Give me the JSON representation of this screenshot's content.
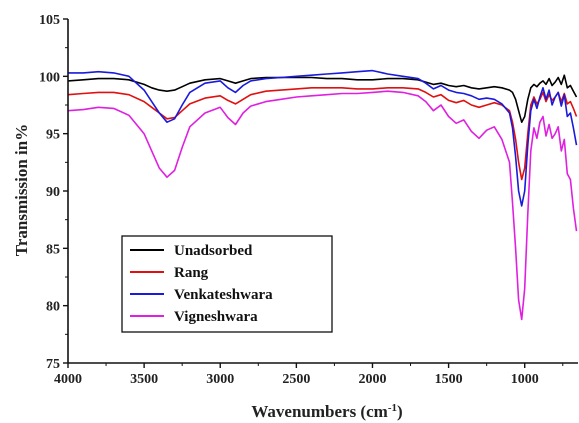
{
  "chart_data": {
    "type": "line",
    "title": "",
    "xlabel": "Wavenumbers (cm",
    "xlabel_sup": "-1",
    "xlabel_end": ")",
    "ylabel": "Transmission in%",
    "xlim": [
      4000,
      650
    ],
    "ylim": [
      75,
      105
    ],
    "x_reversed": true,
    "x_ticks": [
      4000,
      3500,
      3000,
      2500,
      2000,
      1500,
      1000
    ],
    "y_ticks": [
      75,
      80,
      85,
      90,
      95,
      100,
      105
    ],
    "grid": false,
    "legend_position": "lower-left",
    "series": [
      {
        "name": "Unadsorbed",
        "color": "#000000",
        "x": [
          4000,
          3900,
          3800,
          3700,
          3600,
          3500,
          3450,
          3400,
          3350,
          3300,
          3250,
          3200,
          3100,
          3000,
          2950,
          2900,
          2850,
          2800,
          2700,
          2600,
          2500,
          2400,
          2300,
          2200,
          2100,
          2000,
          1900,
          1800,
          1700,
          1650,
          1600,
          1550,
          1500,
          1450,
          1400,
          1350,
          1300,
          1250,
          1200,
          1150,
          1100,
          1080,
          1060,
          1040,
          1020,
          1000,
          980,
          960,
          940,
          920,
          900,
          880,
          860,
          840,
          820,
          800,
          780,
          760,
          740,
          720,
          700,
          680,
          660
        ],
        "values": [
          99.6,
          99.7,
          99.8,
          99.8,
          99.7,
          99.3,
          99.0,
          98.8,
          98.7,
          98.8,
          99.1,
          99.4,
          99.7,
          99.8,
          99.6,
          99.4,
          99.6,
          99.8,
          99.9,
          99.9,
          99.9,
          99.9,
          99.8,
          99.8,
          99.7,
          99.7,
          99.8,
          99.8,
          99.7,
          99.5,
          99.3,
          99.4,
          99.2,
          99.1,
          99.2,
          99.0,
          98.9,
          99.0,
          99.1,
          99.0,
          98.8,
          98.6,
          98.0,
          97.0,
          96.0,
          96.5,
          98.0,
          99.0,
          99.3,
          99.1,
          99.4,
          99.6,
          99.3,
          99.8,
          99.2,
          99.5,
          99.9,
          99.3,
          100.1,
          99.0,
          99.2,
          98.7,
          98.2
        ]
      },
      {
        "name": "Rang",
        "color": "#e01010",
        "x": [
          4000,
          3900,
          3800,
          3700,
          3600,
          3500,
          3450,
          3400,
          3350,
          3300,
          3250,
          3200,
          3100,
          3000,
          2950,
          2900,
          2850,
          2800,
          2700,
          2600,
          2500,
          2400,
          2300,
          2200,
          2100,
          2000,
          1900,
          1800,
          1700,
          1650,
          1600,
          1550,
          1500,
          1450,
          1400,
          1350,
          1300,
          1250,
          1200,
          1150,
          1100,
          1080,
          1060,
          1040,
          1020,
          1000,
          980,
          960,
          940,
          920,
          900,
          880,
          860,
          840,
          820,
          800,
          780,
          760,
          740,
          720,
          700,
          680,
          660
        ],
        "values": [
          98.4,
          98.5,
          98.6,
          98.6,
          98.4,
          97.8,
          97.3,
          96.8,
          96.3,
          96.4,
          97.0,
          97.6,
          98.1,
          98.3,
          97.9,
          97.6,
          98.0,
          98.4,
          98.7,
          98.8,
          98.9,
          99.0,
          99.0,
          99.0,
          98.9,
          98.9,
          99.0,
          99.0,
          98.9,
          98.6,
          98.2,
          98.4,
          97.9,
          97.7,
          97.9,
          97.5,
          97.3,
          97.5,
          97.7,
          97.5,
          97.0,
          96.0,
          94.5,
          92.5,
          91.0,
          92.0,
          95.0,
          97.5,
          98.2,
          97.6,
          98.0,
          98.6,
          97.8,
          98.4,
          97.9,
          98.2,
          98.6,
          97.8,
          98.5,
          97.6,
          97.8,
          97.2,
          96.5
        ]
      },
      {
        "name": "Venkateshwara",
        "color": "#1a1adc",
        "x": [
          4000,
          3900,
          3800,
          3700,
          3600,
          3500,
          3450,
          3400,
          3350,
          3300,
          3250,
          3200,
          3100,
          3000,
          2950,
          2900,
          2850,
          2800,
          2700,
          2600,
          2500,
          2400,
          2300,
          2200,
          2100,
          2000,
          1900,
          1800,
          1700,
          1650,
          1600,
          1550,
          1500,
          1450,
          1400,
          1350,
          1300,
          1250,
          1200,
          1150,
          1100,
          1080,
          1060,
          1040,
          1020,
          1000,
          980,
          960,
          940,
          920,
          900,
          880,
          860,
          840,
          820,
          800,
          780,
          760,
          740,
          720,
          700,
          680,
          660
        ],
        "values": [
          100.3,
          100.3,
          100.4,
          100.3,
          100.0,
          98.8,
          97.8,
          96.8,
          96.0,
          96.3,
          97.5,
          98.6,
          99.4,
          99.6,
          99.0,
          98.6,
          99.2,
          99.6,
          99.8,
          99.9,
          100.0,
          100.1,
          100.2,
          100.3,
          100.4,
          100.5,
          100.2,
          100.0,
          99.8,
          99.4,
          98.9,
          99.2,
          98.8,
          98.6,
          98.5,
          98.3,
          98.0,
          98.1,
          98.0,
          97.6,
          96.8,
          95.5,
          93.0,
          90.0,
          88.7,
          90.0,
          94.0,
          97.0,
          98.0,
          97.2,
          98.2,
          99.0,
          98.0,
          98.8,
          97.5,
          98.2,
          98.6,
          97.4,
          98.4,
          96.5,
          96.8,
          95.5,
          94.0
        ]
      },
      {
        "name": "Vigneshwara",
        "color": "#e020e0",
        "x": [
          4000,
          3900,
          3800,
          3700,
          3600,
          3500,
          3450,
          3400,
          3350,
          3300,
          3250,
          3200,
          3100,
          3000,
          2950,
          2900,
          2850,
          2800,
          2700,
          2600,
          2500,
          2400,
          2300,
          2200,
          2100,
          2000,
          1900,
          1800,
          1700,
          1650,
          1600,
          1550,
          1500,
          1450,
          1400,
          1350,
          1300,
          1250,
          1200,
          1150,
          1100,
          1080,
          1060,
          1040,
          1020,
          1000,
          980,
          960,
          940,
          920,
          900,
          880,
          860,
          840,
          820,
          800,
          780,
          760,
          740,
          720,
          700,
          680,
          660
        ],
        "values": [
          97.0,
          97.1,
          97.3,
          97.2,
          96.6,
          95.0,
          93.5,
          92.0,
          91.2,
          91.8,
          93.8,
          95.6,
          96.8,
          97.3,
          96.4,
          95.8,
          96.8,
          97.4,
          97.8,
          98.0,
          98.2,
          98.3,
          98.4,
          98.5,
          98.5,
          98.6,
          98.7,
          98.6,
          98.3,
          97.8,
          97.0,
          97.5,
          96.5,
          95.9,
          96.2,
          95.2,
          94.6,
          95.3,
          95.6,
          94.5,
          92.5,
          89.0,
          85.0,
          80.5,
          78.8,
          81.5,
          88.0,
          93.5,
          95.5,
          94.6,
          96.0,
          96.5,
          94.8,
          95.8,
          94.6,
          95.0,
          95.6,
          93.5,
          94.5,
          91.5,
          91.0,
          88.5,
          86.5
        ]
      }
    ]
  }
}
